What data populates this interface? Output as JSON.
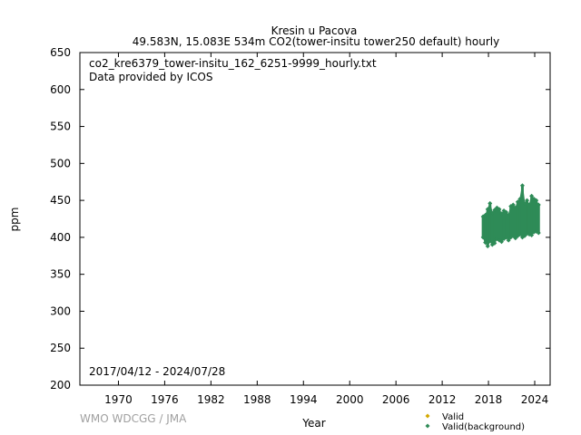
{
  "chart_data": {
    "type": "scatter",
    "title": "Kresin u Pacova",
    "subtitle": "49.583N, 15.083E 534m    CO2(tower-insitu tower250 default) hourly",
    "xlabel": "Year",
    "ylabel": "ppm",
    "xlim": [
      1965,
      2026
    ],
    "ylim": [
      200,
      650
    ],
    "x_ticks": [
      1970,
      1976,
      1982,
      1988,
      1994,
      2000,
      2006,
      2012,
      2018,
      2024
    ],
    "y_ticks": [
      200,
      250,
      300,
      350,
      400,
      450,
      500,
      550,
      600,
      650
    ],
    "grid": false,
    "file_label": "co2_kre6379_tower-insitu_162_6251-9999_hourly.txt",
    "provider_label": "Data provided by ICOS",
    "date_range_label": "2017/04/12 - 2024/07/28",
    "credit": "WMO WDCGG / JMA",
    "legend": {
      "position": "bottom-right",
      "entries": [
        {
          "label": "Valid",
          "color": "#d4a800",
          "marker": "diamond"
        },
        {
          "label": "Valid(background)",
          "color": "#2e8b57",
          "marker": "diamond"
        }
      ]
    },
    "series": [
      {
        "name": "Valid(background)",
        "color": "#2e8b57",
        "bands": [
          {
            "x": 2017.3,
            "low": 400,
            "high": 428
          },
          {
            "x": 2017.6,
            "low": 393,
            "high": 430
          },
          {
            "x": 2017.9,
            "low": 388,
            "high": 438
          },
          {
            "x": 2018.2,
            "low": 395,
            "high": 446
          },
          {
            "x": 2018.5,
            "low": 390,
            "high": 433
          },
          {
            "x": 2018.8,
            "low": 392,
            "high": 437
          },
          {
            "x": 2019.1,
            "low": 398,
            "high": 440
          },
          {
            "x": 2019.4,
            "low": 396,
            "high": 438
          },
          {
            "x": 2019.7,
            "low": 394,
            "high": 432
          },
          {
            "x": 2020.0,
            "low": 398,
            "high": 436
          },
          {
            "x": 2020.3,
            "low": 400,
            "high": 434
          },
          {
            "x": 2020.6,
            "low": 396,
            "high": 430
          },
          {
            "x": 2020.9,
            "low": 400,
            "high": 442
          },
          {
            "x": 2021.2,
            "low": 402,
            "high": 444
          },
          {
            "x": 2021.5,
            "low": 399,
            "high": 440
          },
          {
            "x": 2021.8,
            "low": 402,
            "high": 448
          },
          {
            "x": 2022.1,
            "low": 404,
            "high": 452
          },
          {
            "x": 2022.4,
            "low": 400,
            "high": 470
          },
          {
            "x": 2022.7,
            "low": 402,
            "high": 446
          },
          {
            "x": 2023.0,
            "low": 405,
            "high": 450
          },
          {
            "x": 2023.3,
            "low": 404,
            "high": 444
          },
          {
            "x": 2023.6,
            "low": 403,
            "high": 456
          },
          {
            "x": 2023.9,
            "low": 407,
            "high": 452
          },
          {
            "x": 2024.2,
            "low": 408,
            "high": 450
          },
          {
            "x": 2024.5,
            "low": 406,
            "high": 444
          }
        ]
      }
    ]
  }
}
